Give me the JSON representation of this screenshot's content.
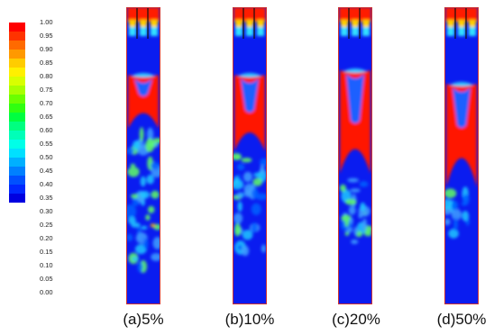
{
  "legend": {
    "ticks": [
      "1.00",
      "0.95",
      "0.90",
      "0.85",
      "0.80",
      "0.75",
      "0.70",
      "0.65",
      "0.60",
      "0.55",
      "0.50",
      "0.45",
      "0.40",
      "0.35",
      "0.30",
      "0.25",
      "0.20",
      "0.15",
      "0.10",
      "0.05",
      "0.00"
    ],
    "colors": [
      "#ff0000",
      "#ff3300",
      "#ff6a00",
      "#ff9900",
      "#ffcc00",
      "#fff000",
      "#d8ff00",
      "#a8ff00",
      "#6aff00",
      "#30ff10",
      "#00ff40",
      "#00ff80",
      "#00ffb8",
      "#00ffe8",
      "#00e0ff",
      "#00b0ff",
      "#0080ff",
      "#0050ff",
      "#0028ff",
      "#0000e0"
    ]
  },
  "panels": [
    {
      "caption": "(a)5%"
    },
    {
      "caption": "(b)10%"
    },
    {
      "caption": "(c)20%"
    },
    {
      "caption": "(d)50%"
    }
  ]
}
